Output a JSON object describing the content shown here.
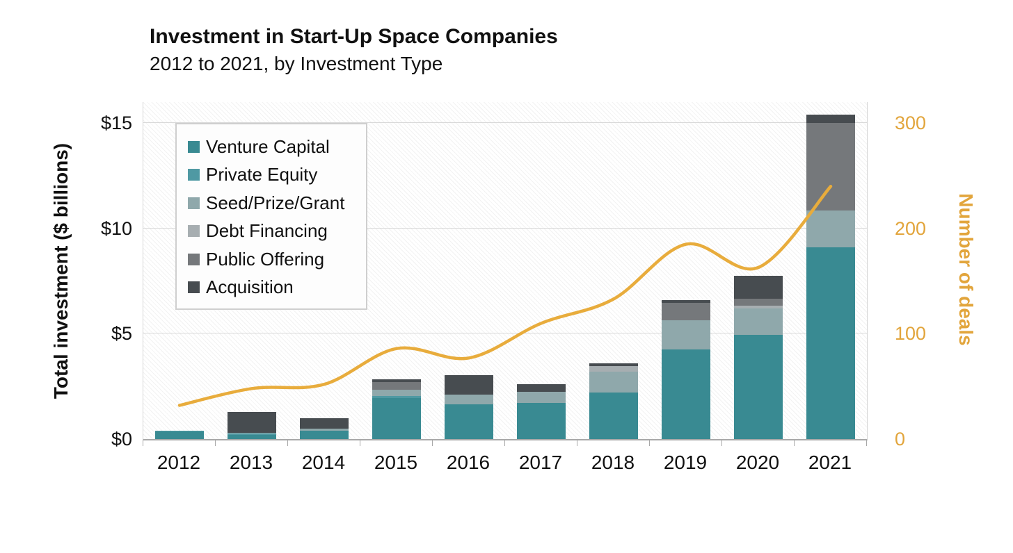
{
  "title": "Investment in Start-Up Space Companies",
  "subtitle": "2012 to 2021, by Investment Type",
  "left_axis": {
    "title": "Total investment ($ billions)",
    "tick_labels": [
      "$0",
      "$5",
      "$10",
      "$15"
    ],
    "tick_values": [
      0,
      5,
      10,
      15
    ]
  },
  "right_axis": {
    "title": "Number of deals",
    "tick_labels": [
      "0",
      "100",
      "200",
      "300"
    ],
    "tick_values": [
      0,
      100,
      200,
      300
    ],
    "color": "#E2A53C"
  },
  "chart_data": {
    "type": "bar",
    "subtype": "stacked-bars-with-line",
    "title": "Investment in Start-Up Space Companies",
    "subtitle": "2012 to 2021, by Investment Type",
    "categories": [
      "2012",
      "2013",
      "2014",
      "2015",
      "2016",
      "2017",
      "2018",
      "2019",
      "2020",
      "2021"
    ],
    "series": [
      {
        "name": "Venture Capital",
        "color": "#398A92",
        "values": [
          0.35,
          0.2,
          0.4,
          1.95,
          1.65,
          1.7,
          2.2,
          4.25,
          4.95,
          9.1
        ]
      },
      {
        "name": "Private Equity",
        "color": "#4F99A3",
        "values": [
          0.05,
          0.05,
          0.0,
          0.1,
          0.0,
          0.0,
          0.0,
          0.0,
          0.0,
          0.0
        ]
      },
      {
        "name": "Seed/Prize/Grant",
        "color": "#8FA8AB",
        "values": [
          0.0,
          0.05,
          0.1,
          0.3,
          0.45,
          0.55,
          1.0,
          1.4,
          1.25,
          1.75
        ]
      },
      {
        "name": "Debt Financing",
        "color": "#A7AEB1",
        "values": [
          0.0,
          0.0,
          0.0,
          0.0,
          0.0,
          0.0,
          0.25,
          0.0,
          0.15,
          0.0
        ]
      },
      {
        "name": "Public Offering",
        "color": "#75787B",
        "values": [
          0.0,
          0.0,
          0.0,
          0.35,
          0.0,
          0.0,
          0.0,
          0.8,
          0.3,
          4.15
        ]
      },
      {
        "name": "Acquisition",
        "color": "#474C50",
        "values": [
          0.0,
          1.0,
          0.5,
          0.15,
          0.95,
          0.35,
          0.15,
          0.15,
          1.1,
          0.4
        ]
      }
    ],
    "bar_totals": [
      0.4,
      1.3,
      1.0,
      2.85,
      3.05,
      2.6,
      3.6,
      6.6,
      7.75,
      15.4
    ],
    "line_series": {
      "name": "Number of deals",
      "axis": "right",
      "color": "#E8AC3C",
      "values": [
        32,
        48,
        52,
        86,
        77,
        110,
        133,
        185,
        163,
        240
      ]
    },
    "ylabel_left": "Total investment ($ billions)",
    "ylabel_right": "Number of deals",
    "ylim_left": [
      0,
      16
    ],
    "ylim_right": [
      0,
      320
    ],
    "grid": "horizontal",
    "legend_position": "upper-left-inside"
  }
}
